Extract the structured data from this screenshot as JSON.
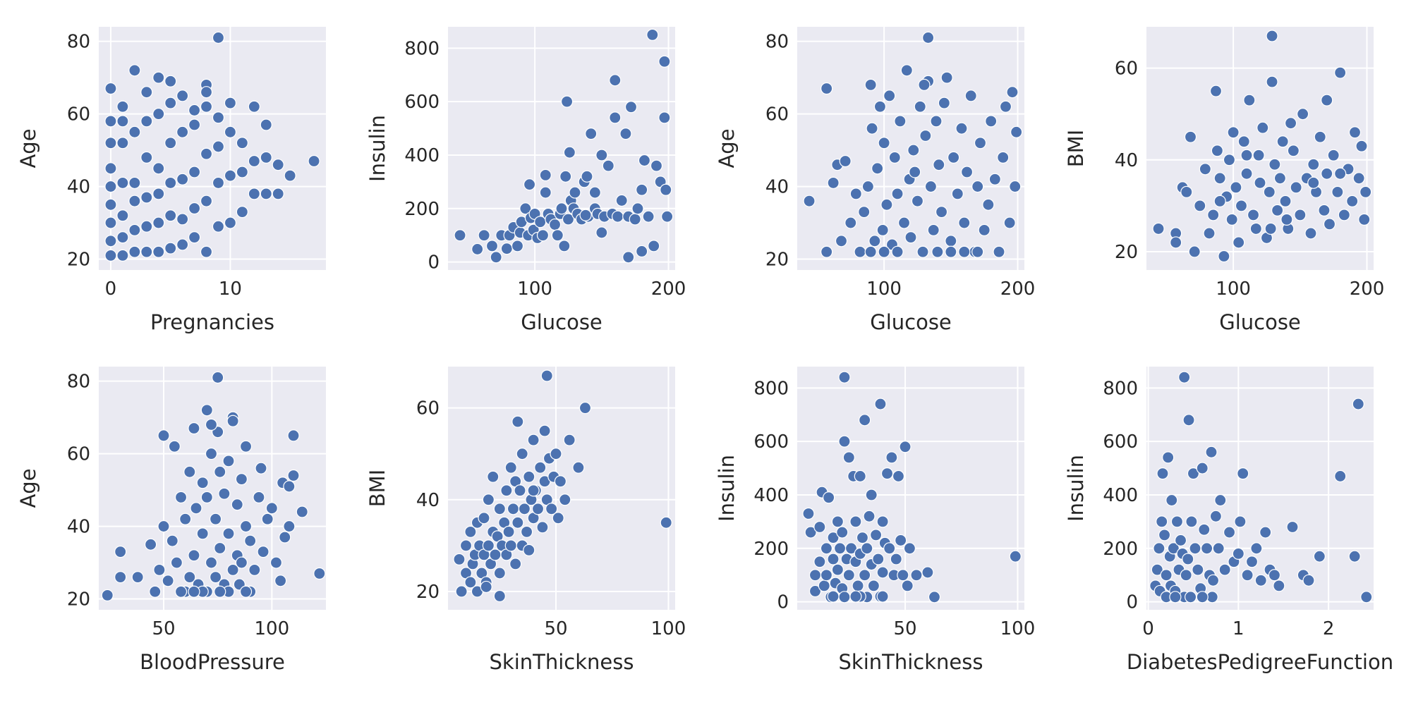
{
  "figure": {
    "style": "seaborn-darkgrid",
    "point_color": "#4c72b0",
    "panel_color": "#eaeaf2",
    "grid_color": "#ffffff"
  },
  "chart_data": [
    {
      "type": "scatter",
      "title": "",
      "xlabel": "Pregnancies",
      "ylabel": "Age",
      "xlim": [
        -1,
        18
      ],
      "ylim": [
        17,
        84
      ],
      "xticks": [
        0,
        10
      ],
      "yticks": [
        20,
        40,
        60,
        80
      ],
      "x": [
        0,
        0,
        0,
        0,
        0,
        0,
        0,
        0,
        0,
        1,
        1,
        1,
        1,
        1,
        1,
        1,
        2,
        2,
        2,
        2,
        2,
        2,
        3,
        3,
        3,
        3,
        3,
        3,
        4,
        4,
        4,
        4,
        4,
        4,
        5,
        5,
        5,
        5,
        5,
        5,
        6,
        6,
        6,
        6,
        6,
        7,
        7,
        7,
        7,
        7,
        8,
        8,
        8,
        8,
        8,
        9,
        9,
        9,
        9,
        10,
        10,
        10,
        10,
        11,
        11,
        11,
        12,
        12,
        12,
        13,
        13,
        13,
        14,
        14,
        15,
        17,
        9,
        8
      ],
      "y": [
        21,
        25,
        30,
        35,
        40,
        45,
        52,
        58,
        67,
        21,
        26,
        32,
        41,
        52,
        58,
        62,
        22,
        28,
        36,
        41,
        55,
        72,
        22,
        29,
        37,
        48,
        58,
        66,
        22,
        30,
        38,
        45,
        60,
        70,
        23,
        32,
        41,
        52,
        63,
        69,
        24,
        31,
        42,
        55,
        65,
        26,
        34,
        44,
        57,
        61,
        22,
        36,
        49,
        62,
        68,
        29,
        41,
        51,
        59,
        30,
        43,
        55,
        63,
        33,
        44,
        52,
        38,
        47,
        62,
        38,
        48,
        57,
        38,
        46,
        43,
        47,
        81,
        66
      ]
    },
    {
      "type": "scatter",
      "title": "",
      "xlabel": "Glucose",
      "ylabel": "Insulin",
      "xlim": [
        35,
        205
      ],
      "ylim": [
        -30,
        880
      ],
      "xticks": [
        100,
        200
      ],
      "yticks": [
        0,
        200,
        400,
        600,
        800
      ],
      "x": [
        44,
        57,
        62,
        68,
        71,
        75,
        79,
        81,
        84,
        87,
        89,
        90,
        93,
        95,
        97,
        99,
        100,
        102,
        104,
        106,
        108,
        110,
        112,
        115,
        117,
        119,
        120,
        122,
        124,
        125,
        127,
        129,
        130,
        132,
        135,
        137,
        139,
        140,
        142,
        145,
        147,
        150,
        152,
        155,
        158,
        160,
        162,
        165,
        168,
        170,
        172,
        175,
        177,
        180,
        182,
        185,
        188,
        189,
        191,
        194,
        197,
        197,
        199,
        123,
        145,
        126,
        160,
        170,
        180,
        96,
        108,
        138,
        150,
        198
      ],
      "y": [
        100,
        48,
        100,
        60,
        18,
        100,
        50,
        100,
        130,
        60,
        110,
        150,
        200,
        100,
        165,
        120,
        180,
        90,
        150,
        100,
        260,
        180,
        160,
        140,
        100,
        180,
        200,
        60,
        600,
        160,
        230,
        200,
        260,
        180,
        160,
        300,
        320,
        170,
        480,
        200,
        180,
        400,
        170,
        360,
        180,
        540,
        170,
        230,
        480,
        170,
        580,
        160,
        200,
        270,
        380,
        170,
        850,
        60,
        360,
        300,
        750,
        540,
        170,
        320,
        260,
        410,
        680,
        18,
        40,
        290,
        325,
        175,
        110,
        270
      ]
    },
    {
      "type": "scatter",
      "title": "",
      "xlabel": "Glucose",
      "ylabel": "Age",
      "xlim": [
        35,
        205
      ],
      "ylim": [
        17,
        84
      ],
      "xticks": [
        100,
        200
      ],
      "yticks": [
        20,
        40,
        60,
        80
      ],
      "x": [
        44,
        57,
        57,
        62,
        65,
        68,
        71,
        75,
        79,
        82,
        85,
        88,
        90,
        91,
        93,
        95,
        97,
        99,
        100,
        102,
        104,
        106,
        108,
        110,
        112,
        115,
        117,
        119,
        120,
        122,
        125,
        127,
        129,
        131,
        133,
        135,
        137,
        139,
        141,
        143,
        145,
        147,
        150,
        152,
        155,
        158,
        160,
        162,
        165,
        168,
        170,
        172,
        175,
        178,
        180,
        183,
        186,
        189,
        191,
        194,
        196,
        198,
        199,
        133,
        130,
        123,
        90,
        100,
        110,
        140,
        150,
        160,
        170
      ],
      "y": [
        36,
        67,
        22,
        41,
        46,
        25,
        47,
        30,
        38,
        22,
        33,
        40,
        68,
        56,
        25,
        45,
        62,
        28,
        52,
        35,
        65,
        24,
        48,
        38,
        58,
        30,
        72,
        42,
        26,
        50,
        36,
        62,
        22,
        54,
        69,
        40,
        28,
        58,
        46,
        33,
        63,
        70,
        25,
        48,
        38,
        56,
        30,
        44,
        65,
        22,
        40,
        52,
        28,
        35,
        58,
        42,
        22,
        48,
        62,
        30,
        66,
        40,
        55,
        81,
        68,
        44,
        22,
        22,
        22,
        22,
        22,
        22,
        22
      ]
    },
    {
      "type": "scatter",
      "title": "",
      "xlabel": "Glucose",
      "ylabel": "BMI",
      "xlim": [
        35,
        205
      ],
      "ylim": [
        16,
        69
      ],
      "xticks": [
        100,
        200
      ],
      "yticks": [
        20,
        40,
        60
      ],
      "x": [
        44,
        57,
        57,
        62,
        65,
        68,
        71,
        75,
        79,
        82,
        85,
        87,
        88,
        90,
        93,
        95,
        97,
        99,
        100,
        102,
        104,
        106,
        108,
        110,
        112,
        115,
        117,
        119,
        120,
        122,
        125,
        127,
        129,
        131,
        133,
        135,
        137,
        139,
        141,
        143,
        145,
        147,
        150,
        152,
        155,
        158,
        160,
        162,
        165,
        168,
        170,
        172,
        175,
        178,
        180,
        183,
        186,
        189,
        191,
        194,
        196,
        198,
        199,
        129,
        180,
        90,
        128,
        170,
        160,
        110,
        120,
        140
      ],
      "y": [
        25,
        24,
        22,
        34,
        33,
        45,
        20,
        30,
        38,
        24,
        28,
        55,
        42,
        36,
        19,
        32,
        40,
        27,
        46,
        34,
        22,
        30,
        44,
        37,
        53,
        28,
        25,
        41,
        35,
        47,
        23,
        33,
        57,
        39,
        29,
        36,
        44,
        31,
        25,
        48,
        42,
        34,
        28,
        50,
        36,
        24,
        39,
        33,
        45,
        29,
        37,
        26,
        41,
        33,
        59,
        28,
        38,
        31,
        46,
        36,
        43,
        27,
        33,
        67,
        37,
        31,
        25,
        53,
        35,
        41,
        35,
        27
      ]
    },
    {
      "type": "scatter",
      "title": "",
      "xlabel": "BloodPressure",
      "ylabel": "Age",
      "xlim": [
        20,
        125
      ],
      "ylim": [
        17,
        84
      ],
      "xticks": [
        50,
        100
      ],
      "yticks": [
        20,
        40,
        60,
        80
      ],
      "x": [
        24,
        30,
        30,
        38,
        44,
        46,
        48,
        50,
        50,
        52,
        54,
        55,
        56,
        58,
        60,
        60,
        62,
        62,
        64,
        64,
        65,
        66,
        68,
        68,
        70,
        70,
        70,
        72,
        72,
        74,
        74,
        75,
        76,
        76,
        78,
        78,
        80,
        80,
        80,
        82,
        82,
        84,
        84,
        85,
        86,
        86,
        88,
        88,
        90,
        90,
        92,
        94,
        95,
        96,
        98,
        100,
        102,
        104,
        105,
        106,
        108,
        108,
        110,
        110,
        114,
        122,
        75,
        72,
        82,
        68,
        58,
        64,
        88,
        76
      ],
      "y": [
        21,
        33,
        26,
        26,
        35,
        22,
        28,
        65,
        40,
        25,
        36,
        62,
        30,
        48,
        22,
        42,
        26,
        55,
        32,
        67,
        45,
        24,
        38,
        52,
        22,
        48,
        72,
        30,
        60,
        26,
        42,
        66,
        34,
        55,
        24,
        49,
        22,
        38,
        58,
        28,
        70,
        32,
        46,
        24,
        53,
        30,
        40,
        62,
        22,
        36,
        28,
        48,
        56,
        33,
        42,
        45,
        30,
        25,
        52,
        37,
        51,
        40,
        65,
        54,
        44,
        27,
        81,
        68,
        69,
        22,
        22,
        22,
        22,
        22
      ]
    },
    {
      "type": "scatter",
      "title": "",
      "xlabel": "SkinThickness",
      "ylabel": "BMI",
      "xlim": [
        2,
        103
      ],
      "ylim": [
        16,
        69
      ],
      "xticks": [
        50,
        100
      ],
      "yticks": [
        20,
        40,
        60
      ],
      "x": [
        7,
        8,
        10,
        10,
        12,
        12,
        13,
        14,
        15,
        15,
        16,
        17,
        18,
        18,
        19,
        20,
        20,
        21,
        22,
        22,
        23,
        24,
        25,
        25,
        26,
        27,
        28,
        28,
        29,
        30,
        30,
        31,
        32,
        32,
        33,
        34,
        35,
        35,
        36,
        37,
        38,
        39,
        40,
        40,
        41,
        42,
        43,
        44,
        45,
        45,
        46,
        47,
        48,
        49,
        50,
        51,
        52,
        54,
        56,
        60,
        63,
        99,
        46,
        33,
        25,
        19,
        40,
        38
      ],
      "y": [
        27,
        20,
        24,
        30,
        22,
        33,
        26,
        28,
        20,
        35,
        30,
        24,
        28,
        36,
        22,
        30,
        40,
        26,
        33,
        45,
        28,
        32,
        24,
        38,
        30,
        35,
        28,
        42,
        33,
        30,
        47,
        38,
        26,
        44,
        35,
        42,
        30,
        50,
        38,
        33,
        45,
        40,
        36,
        53,
        42,
        38,
        47,
        34,
        44,
        55,
        40,
        49,
        38,
        45,
        50,
        36,
        44,
        40,
        53,
        47,
        60,
        35,
        67,
        57,
        19,
        21,
        42,
        29
      ]
    },
    {
      "type": "scatter",
      "title": "",
      "xlabel": "SkinThickness",
      "ylabel": "Insulin",
      "xlim": [
        2,
        103
      ],
      "ylim": [
        -30,
        880
      ],
      "xticks": [
        50,
        100
      ],
      "yticks": [
        0,
        200,
        400,
        600,
        800
      ],
      "x": [
        7,
        8,
        10,
        10,
        12,
        12,
        13,
        14,
        15,
        15,
        16,
        17,
        18,
        18,
        19,
        20,
        20,
        21,
        22,
        22,
        23,
        23,
        24,
        25,
        25,
        26,
        27,
        28,
        28,
        29,
        30,
        30,
        31,
        32,
        32,
        33,
        34,
        35,
        35,
        36,
        37,
        38,
        39,
        40,
        40,
        41,
        42,
        43,
        44,
        45,
        46,
        47,
        48,
        49,
        50,
        51,
        52,
        55,
        60,
        63,
        99,
        23,
        33,
        39,
        18,
        30,
        40,
        28
      ],
      "y": [
        330,
        260,
        100,
        40,
        280,
        150,
        410,
        60,
        200,
        100,
        390,
        18,
        160,
        240,
        70,
        300,
        120,
        200,
        50,
        260,
        600,
        840,
        160,
        540,
        100,
        200,
        470,
        150,
        300,
        60,
        180,
        470,
        240,
        100,
        680,
        200,
        320,
        140,
        400,
        60,
        250,
        160,
        740,
        110,
        300,
        220,
        480,
        200,
        540,
        100,
        160,
        470,
        230,
        100,
        580,
        60,
        200,
        100,
        110,
        18,
        170,
        18,
        18,
        20,
        20,
        20,
        20,
        20
      ]
    },
    {
      "type": "scatter",
      "title": "",
      "xlabel": "DiabetesPedigreeFunction",
      "ylabel": "Insulin",
      "xlim": [
        -0.02,
        2.5
      ],
      "ylim": [
        -30,
        880
      ],
      "xticks": [
        0,
        1,
        2
      ],
      "yticks": [
        0,
        200,
        400,
        600,
        800
      ],
      "x": [
        0.08,
        0.1,
        0.12,
        0.13,
        0.15,
        0.16,
        0.18,
        0.2,
        0.22,
        0.24,
        0.25,
        0.26,
        0.28,
        0.3,
        0.32,
        0.34,
        0.36,
        0.38,
        0.4,
        0.42,
        0.44,
        0.45,
        0.48,
        0.5,
        0.52,
        0.55,
        0.58,
        0.6,
        0.62,
        0.65,
        0.68,
        0.7,
        0.72,
        0.75,
        0.78,
        0.8,
        0.85,
        0.9,
        0.95,
        1.0,
        1.02,
        1.05,
        1.1,
        1.15,
        1.2,
        1.25,
        1.3,
        1.35,
        1.4,
        1.45,
        1.6,
        1.72,
        1.78,
        1.9,
        2.13,
        2.29,
        2.33,
        2.42,
        0.4,
        0.47,
        0.71,
        0.2,
        0.3,
        0.6
      ],
      "y": [
        60,
        120,
        200,
        40,
        300,
        480,
        250,
        100,
        540,
        170,
        60,
        380,
        200,
        40,
        300,
        120,
        230,
        180,
        840,
        100,
        160,
        680,
        300,
        480,
        200,
        120,
        50,
        500,
        270,
        200,
        100,
        560,
        80,
        320,
        200,
        380,
        120,
        260,
        150,
        180,
        300,
        480,
        100,
        150,
        200,
        80,
        260,
        120,
        100,
        60,
        280,
        100,
        80,
        170,
        470,
        170,
        740,
        18,
        18,
        18,
        18,
        18,
        18,
        18
      ]
    }
  ]
}
